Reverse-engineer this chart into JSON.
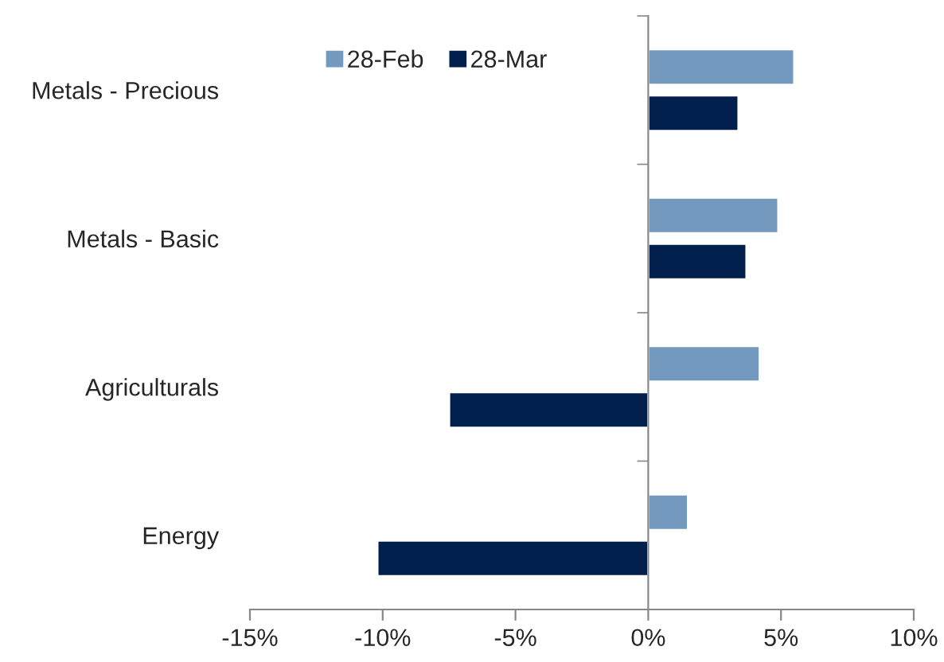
{
  "chart_data": {
    "type": "bar",
    "orientation": "horizontal",
    "categories": [
      "Metals - Precious",
      "Metals - Basic",
      "Agriculturals",
      "Energy"
    ],
    "series": [
      {
        "name": "28-Feb",
        "color": "#7399bf",
        "values": [
          5.5,
          4.9,
          4.2,
          1.5
        ]
      },
      {
        "name": "28-Mar",
        "color": "#001f4d",
        "values": [
          3.4,
          3.7,
          -7.5,
          -10.2
        ]
      }
    ],
    "xlim": [
      -15,
      10
    ],
    "xticks": [
      {
        "value": -15,
        "label": "-15%"
      },
      {
        "value": -10,
        "label": "-10%"
      },
      {
        "value": -5,
        "label": "-5%"
      },
      {
        "value": 0,
        "label": "0%"
      },
      {
        "value": 5,
        "label": "5%"
      },
      {
        "value": 10,
        "label": "10%"
      }
    ],
    "legend": "top left"
  }
}
